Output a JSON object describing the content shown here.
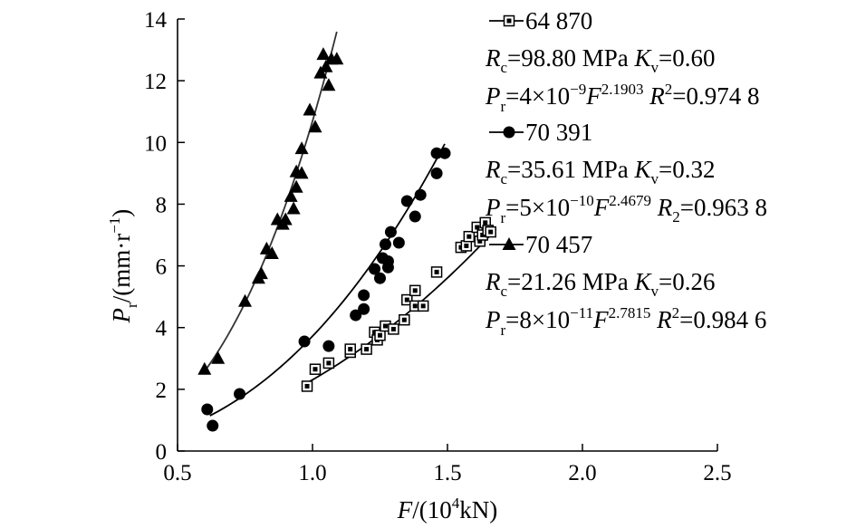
{
  "chart_data": {
    "type": "scatter",
    "xlabel": {
      "text": "F",
      "pre": "/(10",
      "sup": "4",
      "post": "kN)"
    },
    "ylabel": {
      "text": "P",
      "sub": "r",
      "post": "/(mm·r",
      "sup": "−1",
      "close": ")"
    },
    "xlim": [
      0.5,
      2.5
    ],
    "ylim": [
      0,
      14
    ],
    "x_ticks": [
      0.5,
      1.0,
      1.5,
      2.0,
      2.5
    ],
    "y_ticks": [
      0,
      2,
      4,
      6,
      8,
      10,
      12,
      14
    ],
    "grid": false,
    "legend_position": "right",
    "series": [
      {
        "name": "64 870",
        "marker": "square",
        "line1": {
          "a": "R",
          "a_sub": "c",
          "a_val": "=98.80 MPa",
          "b": "K",
          "b_sub": "v",
          "b_val": "=0.60"
        },
        "line2": {
          "p": "P",
          "p_sub": "r",
          "eq": "=4×10",
          "exp": "−9",
          "f": "F",
          "f_exp": "2.1903",
          "r": "R",
          "r_sup": "2",
          "r_val": "=0.974 8"
        },
        "fit": {
          "coef": 4e-09,
          "exp": 2.1903,
          "x_range": [
            0.97,
            1.68
          ]
        },
        "points": [
          [
            0.98,
            2.1
          ],
          [
            1.01,
            2.65
          ],
          [
            1.06,
            2.85
          ],
          [
            1.14,
            3.2
          ],
          [
            1.14,
            3.3
          ],
          [
            1.2,
            3.3
          ],
          [
            1.23,
            3.85
          ],
          [
            1.24,
            3.6
          ],
          [
            1.25,
            3.75
          ],
          [
            1.27,
            4.05
          ],
          [
            1.3,
            3.95
          ],
          [
            1.34,
            4.25
          ],
          [
            1.35,
            4.9
          ],
          [
            1.38,
            4.7
          ],
          [
            1.38,
            5.2
          ],
          [
            1.41,
            4.7
          ],
          [
            1.46,
            5.8
          ],
          [
            1.55,
            6.6
          ],
          [
            1.57,
            6.65
          ],
          [
            1.58,
            6.95
          ],
          [
            1.61,
            7.25
          ],
          [
            1.62,
            6.8
          ],
          [
            1.63,
            7.0
          ],
          [
            1.64,
            7.4
          ],
          [
            1.65,
            7.15
          ],
          [
            1.66,
            7.1
          ]
        ]
      },
      {
        "name": "70 391",
        "marker": "circle",
        "line1": {
          "a": "R",
          "a_sub": "c",
          "a_val": "=35.61 MPa",
          "b": "K",
          "b_sub": "v",
          "b_val": "=0.32"
        },
        "line2": {
          "p": "P",
          "p_sub": "r",
          "eq": "=5×10",
          "exp": "−10",
          "f": "F",
          "f_exp": "2.4679",
          "r": "R",
          "r_sup": "2",
          "r_sub": "2",
          "r_val": "=0.963 8"
        },
        "fit": {
          "coef": 5e-10,
          "exp": 2.4679,
          "x_range": [
            0.62,
            1.49
          ]
        },
        "points": [
          [
            0.61,
            1.35
          ],
          [
            0.63,
            0.82
          ],
          [
            0.73,
            1.85
          ],
          [
            0.97,
            3.55
          ],
          [
            1.06,
            3.4
          ],
          [
            1.16,
            4.4
          ],
          [
            1.19,
            5.05
          ],
          [
            1.19,
            4.6
          ],
          [
            1.23,
            5.9
          ],
          [
            1.25,
            5.6
          ],
          [
            1.26,
            6.25
          ],
          [
            1.27,
            6.7
          ],
          [
            1.28,
            5.95
          ],
          [
            1.28,
            6.15
          ],
          [
            1.29,
            7.1
          ],
          [
            1.32,
            6.75
          ],
          [
            1.35,
            8.1
          ],
          [
            1.38,
            7.6
          ],
          [
            1.4,
            8.3
          ],
          [
            1.46,
            9.0
          ],
          [
            1.46,
            9.65
          ],
          [
            1.49,
            9.65
          ]
        ]
      },
      {
        "name": "70 457",
        "marker": "triangle",
        "line1": {
          "a": "R",
          "a_sub": "c",
          "a_val": "=21.26 MPa",
          "b": "K",
          "b_sub": "v",
          "b_val": "=0.26"
        },
        "line2": {
          "p": "P",
          "p_sub": "r",
          "eq": "=8×10",
          "exp": "−11",
          "f": "F",
          "f_exp": "2.7815",
          "r": "R",
          "r_sup": "2",
          "r_val": "=0.984 6"
        },
        "fit": {
          "coef": 8e-11,
          "exp": 2.7815,
          "x_range": [
            0.6,
            1.09
          ]
        },
        "points": [
          [
            0.6,
            2.65
          ],
          [
            0.65,
            3.0
          ],
          [
            0.75,
            4.85
          ],
          [
            0.8,
            5.6
          ],
          [
            0.81,
            5.75
          ],
          [
            0.83,
            6.55
          ],
          [
            0.85,
            6.4
          ],
          [
            0.87,
            7.5
          ],
          [
            0.89,
            7.35
          ],
          [
            0.9,
            7.5
          ],
          [
            0.92,
            8.25
          ],
          [
            0.93,
            7.85
          ],
          [
            0.94,
            8.55
          ],
          [
            0.94,
            9.05
          ],
          [
            0.96,
            9.0
          ],
          [
            0.96,
            9.8
          ],
          [
            0.99,
            11.05
          ],
          [
            1.01,
            10.5
          ],
          [
            1.03,
            12.25
          ],
          [
            1.04,
            12.85
          ],
          [
            1.05,
            12.45
          ],
          [
            1.06,
            11.85
          ],
          [
            1.07,
            12.7
          ],
          [
            1.09,
            12.7
          ]
        ]
      }
    ]
  }
}
